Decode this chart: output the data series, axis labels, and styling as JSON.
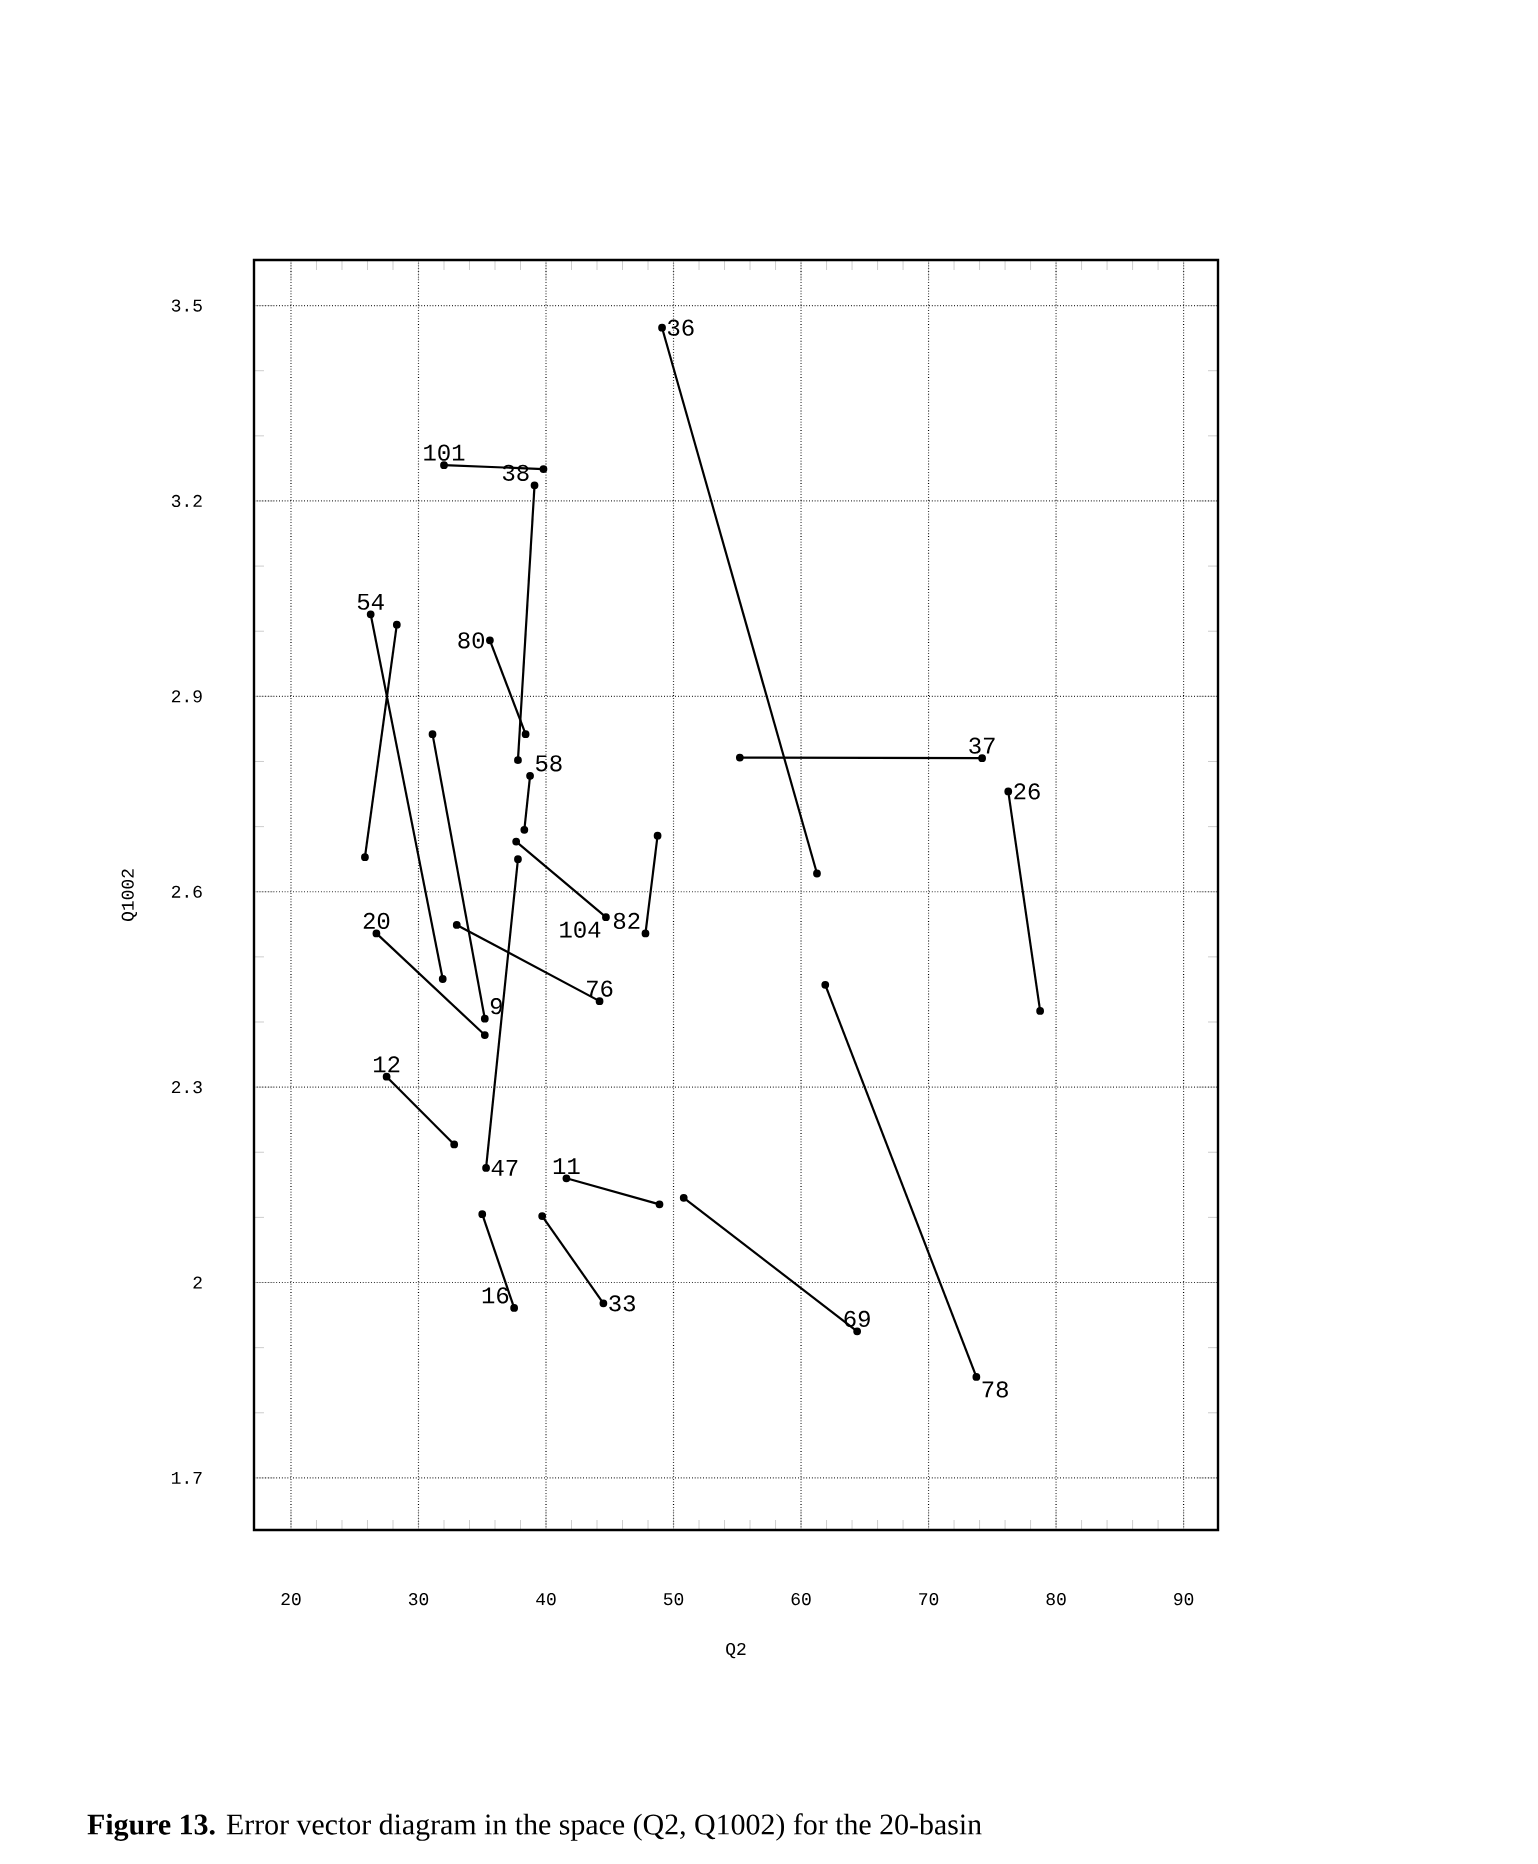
{
  "chart_data": {
    "type": "line",
    "xlabel": "Q2",
    "ylabel": "Q1002",
    "xlim": [
      17.1,
      92.7
    ],
    "ylim": [
      1.62,
      3.57
    ],
    "xticks": [
      20,
      30,
      40,
      50,
      60,
      70,
      80,
      90
    ],
    "yticks": [
      1.7,
      2,
      2.3,
      2.6,
      2.9,
      3.2,
      3.5
    ],
    "grid": true,
    "marker": "circle",
    "line_style": "solid",
    "annotations": [
      "**Figure 13.** Error vector diagram in the space (Q2, Q1002) for the 20-basin"
    ],
    "series": [
      {
        "name": "36",
        "color": "#000000",
        "x": [
          49.1,
          61.25
        ],
        "values": [
          3.466,
          2.628
        ]
      },
      {
        "name": "101",
        "color": "#000000",
        "x": [
          32.0,
          39.8
        ],
        "values": [
          3.255,
          3.249
        ]
      },
      {
        "name": "38",
        "color": "#000000",
        "x": [
          39.1,
          37.8
        ],
        "values": [
          3.224,
          2.802
        ]
      },
      {
        "name": "54",
        "color": "#000000",
        "x": [
          26.25,
          31.9
        ],
        "values": [
          3.026,
          2.466
        ]
      },
      {
        "color": "#000000",
        "x": [
          28.3,
          25.8
        ],
        "values": [
          3.01,
          2.653
        ]
      },
      {
        "name": "80",
        "color": "#000000",
        "x": [
          35.6,
          38.4
        ],
        "values": [
          2.986,
          2.842
        ]
      },
      {
        "name": "58",
        "color": "#000000",
        "x": [
          38.75,
          38.3
        ],
        "values": [
          2.778,
          2.695
        ]
      },
      {
        "name": "104",
        "color": "#000000",
        "x": [
          37.66,
          44.7
        ],
        "values": [
          2.677,
          2.561
        ]
      },
      {
        "name": "82",
        "color": "#000000",
        "x": [
          48.75,
          47.8
        ],
        "values": [
          2.686,
          2.536
        ]
      },
      {
        "name": "37",
        "color": "#000000",
        "x": [
          55.2,
          74.2
        ],
        "values": [
          2.806,
          2.805
        ]
      },
      {
        "name": "26",
        "color": "#000000",
        "x": [
          76.25,
          78.75
        ],
        "values": [
          2.754,
          2.417
        ]
      },
      {
        "name": "20",
        "color": "#000000",
        "x": [
          26.7,
          35.2
        ],
        "values": [
          2.536,
          2.38
        ]
      },
      {
        "name": "76",
        "color": "#000000",
        "x": [
          33.0,
          44.2
        ],
        "values": [
          2.549,
          2.432
        ]
      },
      {
        "name": "9",
        "color": "#000000",
        "x": [
          31.1,
          35.2
        ],
        "values": [
          2.842,
          2.405
        ]
      },
      {
        "name": "12",
        "color": "#000000",
        "x": [
          27.5,
          32.8
        ],
        "values": [
          2.316,
          2.212
        ]
      },
      {
        "name": "47",
        "color": "#000000",
        "x": [
          37.8,
          35.3
        ],
        "values": [
          2.65,
          2.176
        ]
      },
      {
        "name": "11",
        "color": "#000000",
        "x": [
          41.6,
          48.9
        ],
        "values": [
          2.16,
          2.12
        ]
      },
      {
        "name": "16",
        "color": "#000000",
        "x": [
          35.0,
          37.5
        ],
        "values": [
          2.105,
          1.961
        ]
      },
      {
        "name": "33",
        "color": "#000000",
        "x": [
          39.7,
          44.5
        ],
        "values": [
          2.102,
          1.968
        ]
      },
      {
        "name": "69",
        "color": "#000000",
        "x": [
          50.8,
          64.4
        ],
        "values": [
          2.13,
          1.925
        ]
      },
      {
        "name": "78",
        "color": "#000000",
        "x": [
          61.9,
          73.75
        ],
        "values": [
          2.457,
          1.855
        ]
      }
    ]
  }
}
